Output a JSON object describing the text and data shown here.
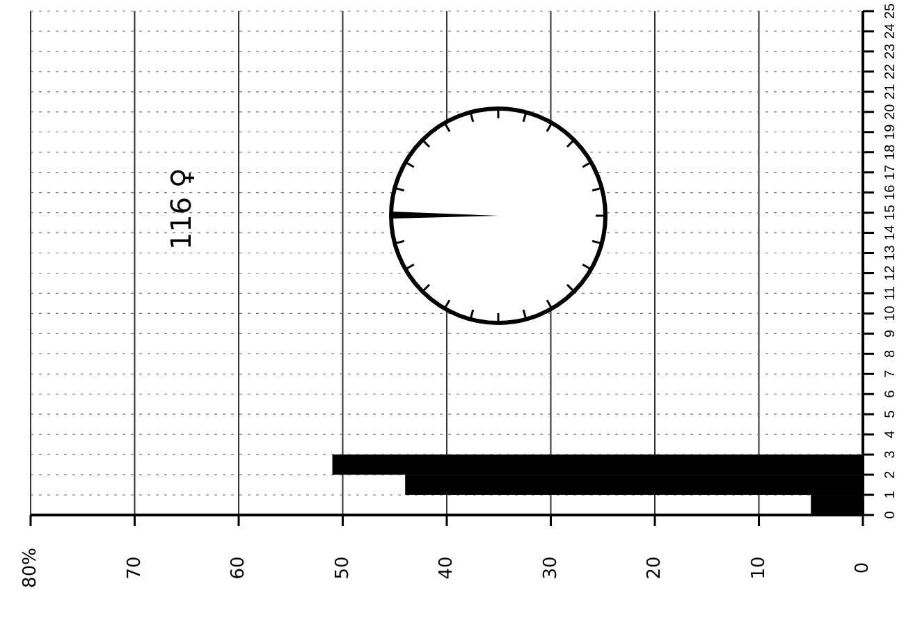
{
  "chart_data": {
    "type": "histogram",
    "orientation": "horizontal",
    "bins": [
      0,
      1,
      2,
      3,
      4,
      5,
      6,
      7,
      8,
      9,
      10,
      11,
      12,
      13,
      14,
      15,
      16,
      17,
      18,
      19,
      20,
      21,
      22,
      23,
      24,
      25
    ],
    "values": [
      5,
      44,
      51,
      0,
      0,
      0,
      0,
      0,
      0,
      0,
      0,
      0,
      0,
      0,
      0,
      0,
      0,
      0,
      0,
      0,
      0,
      0,
      0,
      0,
      0
    ],
    "color": "#000000",
    "xlim": [
      80,
      0
    ],
    "xticks": [
      0,
      10,
      20,
      30,
      40,
      50,
      60,
      70,
      {
        "value": 80,
        "label": "80%"
      }
    ],
    "ylim": [
      0,
      25
    ],
    "yticks": [
      0,
      1,
      2,
      3,
      4,
      5,
      6,
      7,
      8,
      9,
      10,
      11,
      12,
      13,
      14,
      15,
      16,
      17,
      18,
      19,
      20,
      21,
      22,
      23,
      24,
      25
    ],
    "grid": true,
    "annotations": [
      "116 ♀"
    ]
  }
}
